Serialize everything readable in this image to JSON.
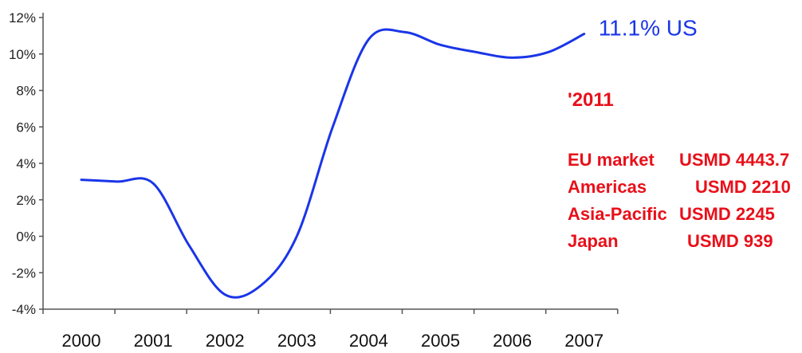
{
  "chart_data": {
    "type": "line",
    "x": [
      "2000",
      "2000.5",
      "2001",
      "2001.5",
      "2002",
      "2002.5",
      "2003",
      "2003.5",
      "2004",
      "2004.5",
      "2005",
      "2005.5",
      "2006",
      "2006.5",
      "2007"
    ],
    "series": [
      {
        "values": [
          3.1,
          3.0,
          2.9,
          -0.5,
          -3.2,
          -2.7,
          0.0,
          6.0,
          10.8,
          11.2,
          10.5,
          10.1,
          9.8,
          10.1,
          11.1
        ],
        "color": "#1a35e8"
      }
    ],
    "categories": [
      "2000",
      "2001",
      "2002",
      "2003",
      "2004",
      "2005",
      "2006",
      "2007"
    ],
    "yticks": [
      "12%",
      "10%",
      "8%",
      "6%",
      "4%",
      "2%",
      "0%",
      "-2%",
      "-4%"
    ],
    "ylim": [
      -4,
      12
    ],
    "end_label": "11.1% US",
    "grid": false
  },
  "annotations": {
    "year": "'2011",
    "markets": [
      {
        "name": "EU market",
        "value": "USMD 4443.7"
      },
      {
        "name": "Americas",
        "value": "USMD 2210"
      },
      {
        "name": "Asia-Pacific",
        "value": "USMD 2245"
      },
      {
        "name": "Japan",
        "value": "USMD 939"
      }
    ],
    "color": "#e8101a"
  }
}
